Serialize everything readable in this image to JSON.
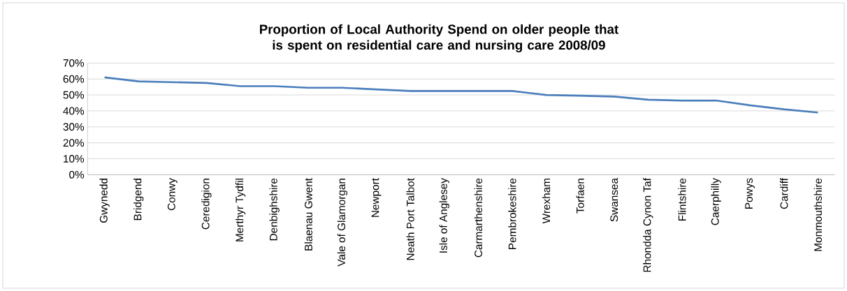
{
  "chart_data": {
    "type": "line",
    "title": "Proportion of Local Authority Spend on older people that is spent on residential care and nursing care 2008/09",
    "categories": [
      "Gwynedd",
      "Bridgend",
      "Conwy",
      "Ceredigion",
      "Merthyr Tydfil",
      "Denbighshire",
      "Blaenau Gwent",
      "Vale of Glamorgan",
      "Newport",
      "Neath Port Talbot",
      "Isle of Anglesey",
      "Carmarthenshire",
      "Pembrokeshire",
      "Wrexham",
      "Torfaen",
      "Swansea",
      "Rhondda Cynon Taf",
      "Flintshire",
      "Caerphilly",
      "Powys",
      "Cardiff",
      "Monmouthshire"
    ],
    "series": [
      {
        "color": "#4a7ebb",
        "values": [
          61,
          58.5,
          58,
          57.5,
          55.5,
          55.5,
          54.5,
          54.5,
          53.5,
          52.5,
          52.5,
          52.5,
          52.5,
          50,
          49.5,
          49,
          47,
          46.5,
          46.5,
          43.5,
          41,
          39
        ]
      }
    ],
    "ylim": [
      0,
      70
    ],
    "yticks": [
      {
        "value": 0,
        "label": "0%"
      },
      {
        "value": 10,
        "label": "10%"
      },
      {
        "value": 20,
        "label": "20%"
      },
      {
        "value": 30,
        "label": "30%"
      },
      {
        "value": 40,
        "label": "40%"
      },
      {
        "value": 50,
        "label": "50%"
      },
      {
        "value": 60,
        "label": "60%"
      },
      {
        "value": 70,
        "label": "70%"
      }
    ],
    "grid": "y",
    "marker": "none",
    "line_style": "solid"
  }
}
